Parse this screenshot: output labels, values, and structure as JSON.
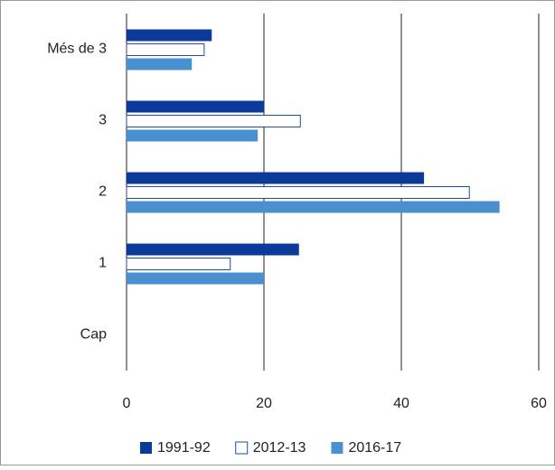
{
  "chart_data": {
    "type": "barh",
    "categories": [
      "Més de 3",
      "3",
      "2",
      "1",
      "Cap"
    ],
    "series": [
      {
        "name": "1991-92",
        "color": "#0b3a9a",
        "values": [
          12.4,
          20,
          43.3,
          25.1,
          0
        ]
      },
      {
        "name": "2012-13",
        "color": "#ffffff",
        "edgecolor": "#1f4e9c",
        "values": [
          11.3,
          25.3,
          49.9,
          15.1,
          0
        ]
      },
      {
        "name": "2016-17",
        "color": "#4a90d0",
        "values": [
          9.5,
          19.1,
          54.3,
          20,
          0
        ]
      }
    ],
    "xlim": [
      0,
      60
    ],
    "xticks": [
      0,
      20,
      40,
      60
    ],
    "grid": true
  }
}
